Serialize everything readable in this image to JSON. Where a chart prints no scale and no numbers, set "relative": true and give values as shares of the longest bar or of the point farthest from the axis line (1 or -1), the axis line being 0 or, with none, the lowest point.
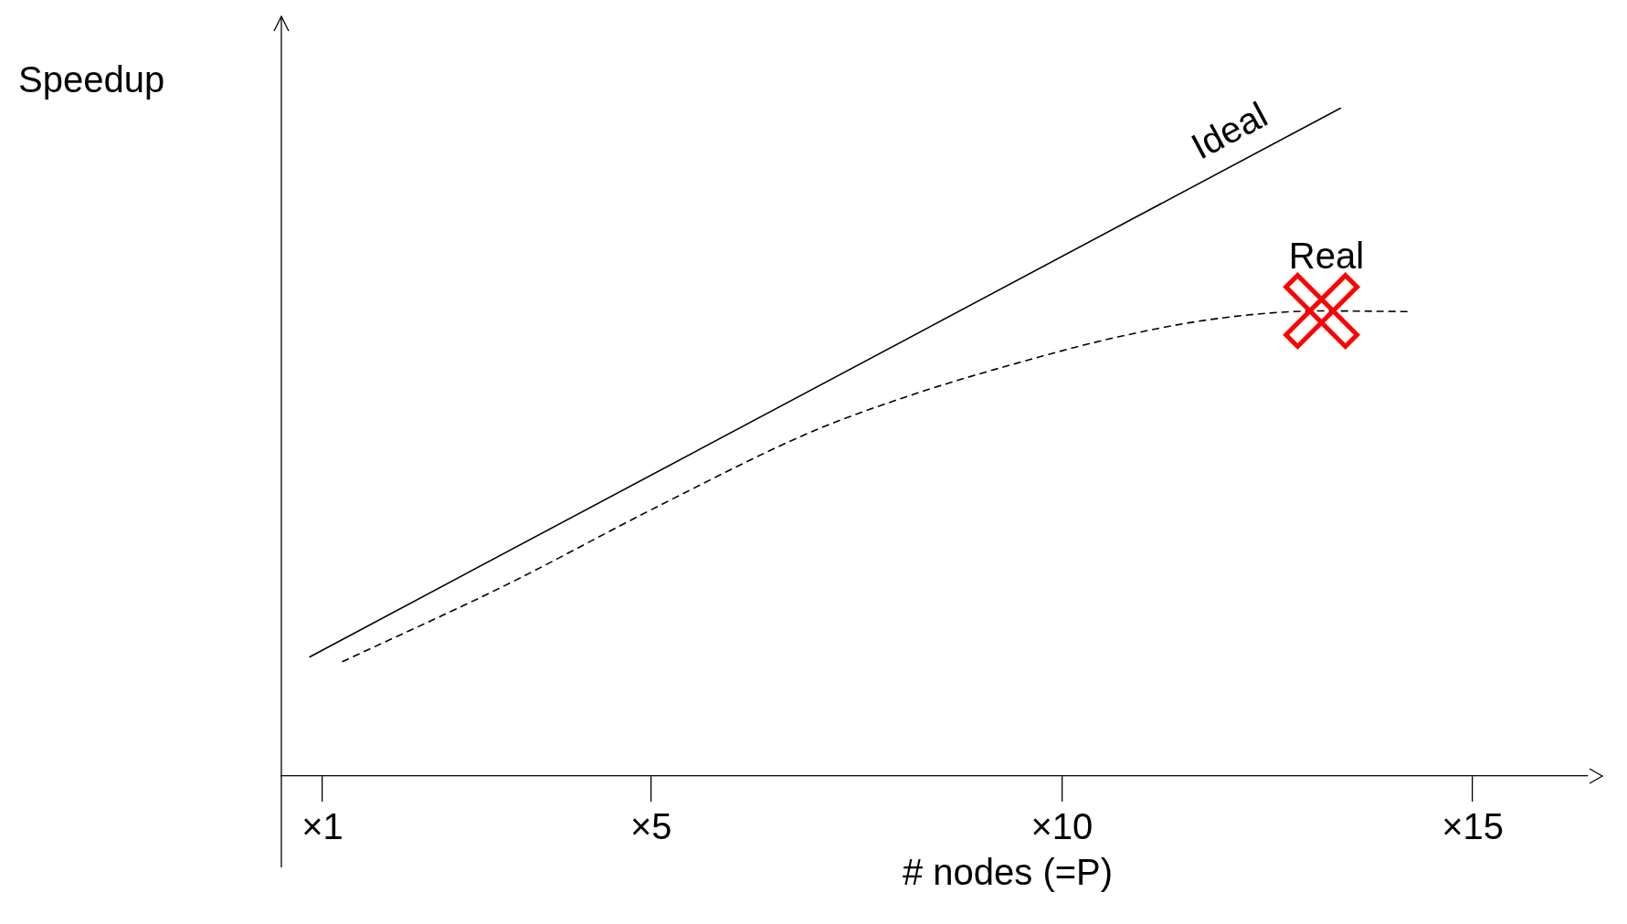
{
  "chart_data": {
    "type": "line",
    "relative": true,
    "xlabel": "# nodes (=P)",
    "ylabel": "Speedup",
    "xlim": [
      0.5,
      16.4
    ],
    "xticks": [
      {
        "value": 1,
        "label": "×1"
      },
      {
        "value": 5,
        "label": "×5"
      },
      {
        "value": 10,
        "label": "×10"
      },
      {
        "value": 15,
        "label": "×15"
      }
    ],
    "grid": false,
    "legend": false,
    "marker": "none",
    "series": [
      {
        "name": "Ideal",
        "color": "#000000",
        "line_style": "solid",
        "x": [
          0.84,
          13.4
        ],
        "values": [
          0.178,
          1
        ]
      },
      {
        "name": "Real",
        "color": "#000000",
        "line_style": "dashed",
        "x": [
          1.24,
          3.22,
          5.09,
          6.95,
          8.19,
          9.43,
          10.68,
          11.92,
          13.16,
          14.22
        ],
        "values": [
          0.171,
          0.285,
          0.404,
          0.515,
          0.571,
          0.617,
          0.657,
          0.685,
          0.696,
          0.695
        ]
      }
    ]
  }
}
